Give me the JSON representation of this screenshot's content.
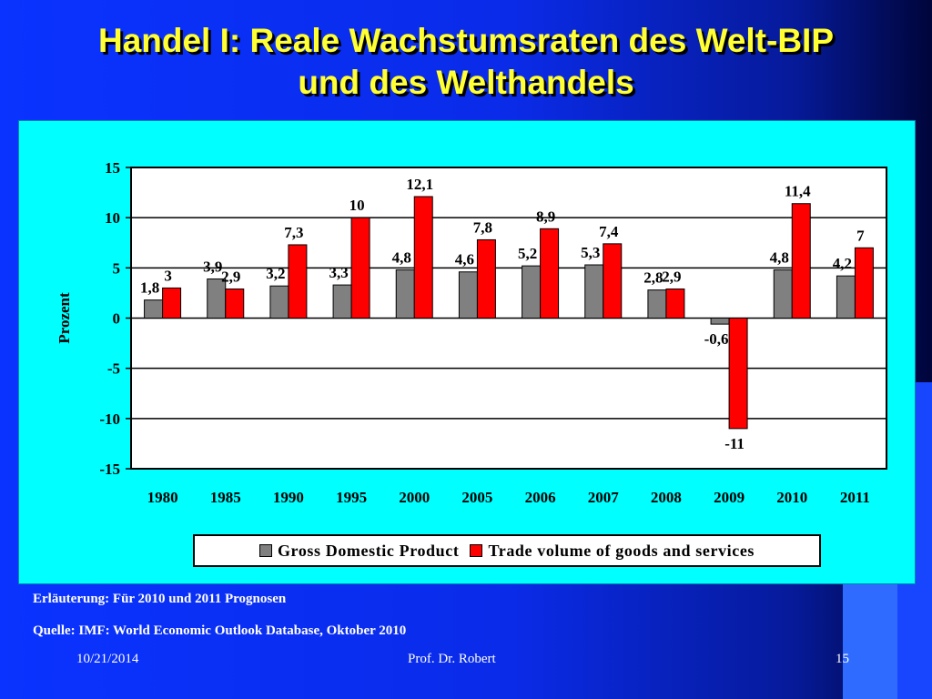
{
  "slide": {
    "title_line1": "Handel I: Reale Wachstumsraten des Welt-BIP",
    "title_line2": "und des Welthandels",
    "note": "Erläuterung: Für 2010 und 2011 Prognosen",
    "source": "Quelle: IMF: World Economic Outlook Database, Oktober 2010",
    "footer_date": "10/21/2014",
    "footer_author": "Prof. Dr. Robert",
    "footer_page": "15"
  },
  "colors": {
    "gdp": "#808080",
    "trade": "#ff0000",
    "title": "#ffff33",
    "panel": "#00ffff"
  },
  "chart_data": {
    "type": "bar",
    "title": "",
    "xlabel": "",
    "ylabel": "Prozent",
    "ylim": [
      -15,
      15
    ],
    "yticks": [
      15,
      10,
      5,
      0,
      -5,
      -10,
      -15
    ],
    "grid": true,
    "legend_position": "bottom",
    "categories": [
      "1980",
      "1985",
      "1990",
      "1995",
      "2000",
      "2005",
      "2006",
      "2007",
      "2008",
      "2009",
      "2010",
      "2011"
    ],
    "series": [
      {
        "name": "Gross Domestic Product",
        "values": [
          1.8,
          3.9,
          3.2,
          3.3,
          4.8,
          4.6,
          5.2,
          5.3,
          2.8,
          -0.6,
          4.8,
          4.2
        ],
        "labels": [
          "1,8",
          "3,9",
          "3,2",
          "3,3",
          "4,8",
          "4,6",
          "5,2",
          "5,3",
          "2,8",
          "-0,6",
          "4,8",
          "4,2"
        ]
      },
      {
        "name": "Trade volume of goods and services",
        "values": [
          3,
          2.9,
          7.3,
          10,
          12.1,
          7.8,
          8.9,
          7.4,
          2.9,
          -11,
          11.4,
          7
        ],
        "labels": [
          "3",
          "2,9",
          "7,3",
          "10",
          "12,1",
          "7,8",
          "8,9",
          "7,4",
          "2,9",
          "-11",
          "11,4",
          "7"
        ]
      }
    ]
  }
}
